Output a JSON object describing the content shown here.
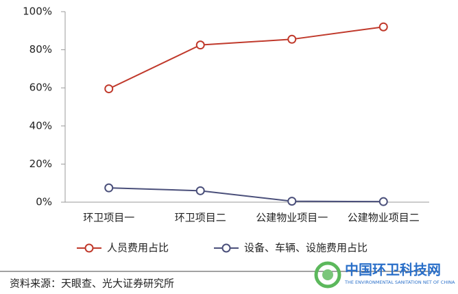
{
  "chart_data": {
    "type": "line",
    "categories": [
      "环卫项目一",
      "环卫项目二",
      "公建物业项目一",
      "公建物业项目二"
    ],
    "series": [
      {
        "name": "人员费用占比",
        "color": "#c0392b",
        "values": [
          59.5,
          82.5,
          85.5,
          92
        ]
      },
      {
        "name": "设备、车辆、设施费用占比",
        "color": "#4a4f7a",
        "values": [
          7.5,
          6,
          0.5,
          0.3
        ]
      }
    ],
    "ylim": [
      0,
      100
    ],
    "yticks": [
      {
        "value": 0,
        "label": "0%"
      },
      {
        "value": 20,
        "label": "20%"
      },
      {
        "value": 40,
        "label": "40%"
      },
      {
        "value": 60,
        "label": "60%"
      },
      {
        "value": 80,
        "label": "80%"
      },
      {
        "value": 100,
        "label": "100%"
      }
    ],
    "grid": false
  },
  "source": "资料来源：天眼查、光大证券研究所",
  "watermark": {
    "title": "中国环卫科技网",
    "subtitle": "THE ENVIRONMENTAL SANITATION NET OF CHINA"
  }
}
